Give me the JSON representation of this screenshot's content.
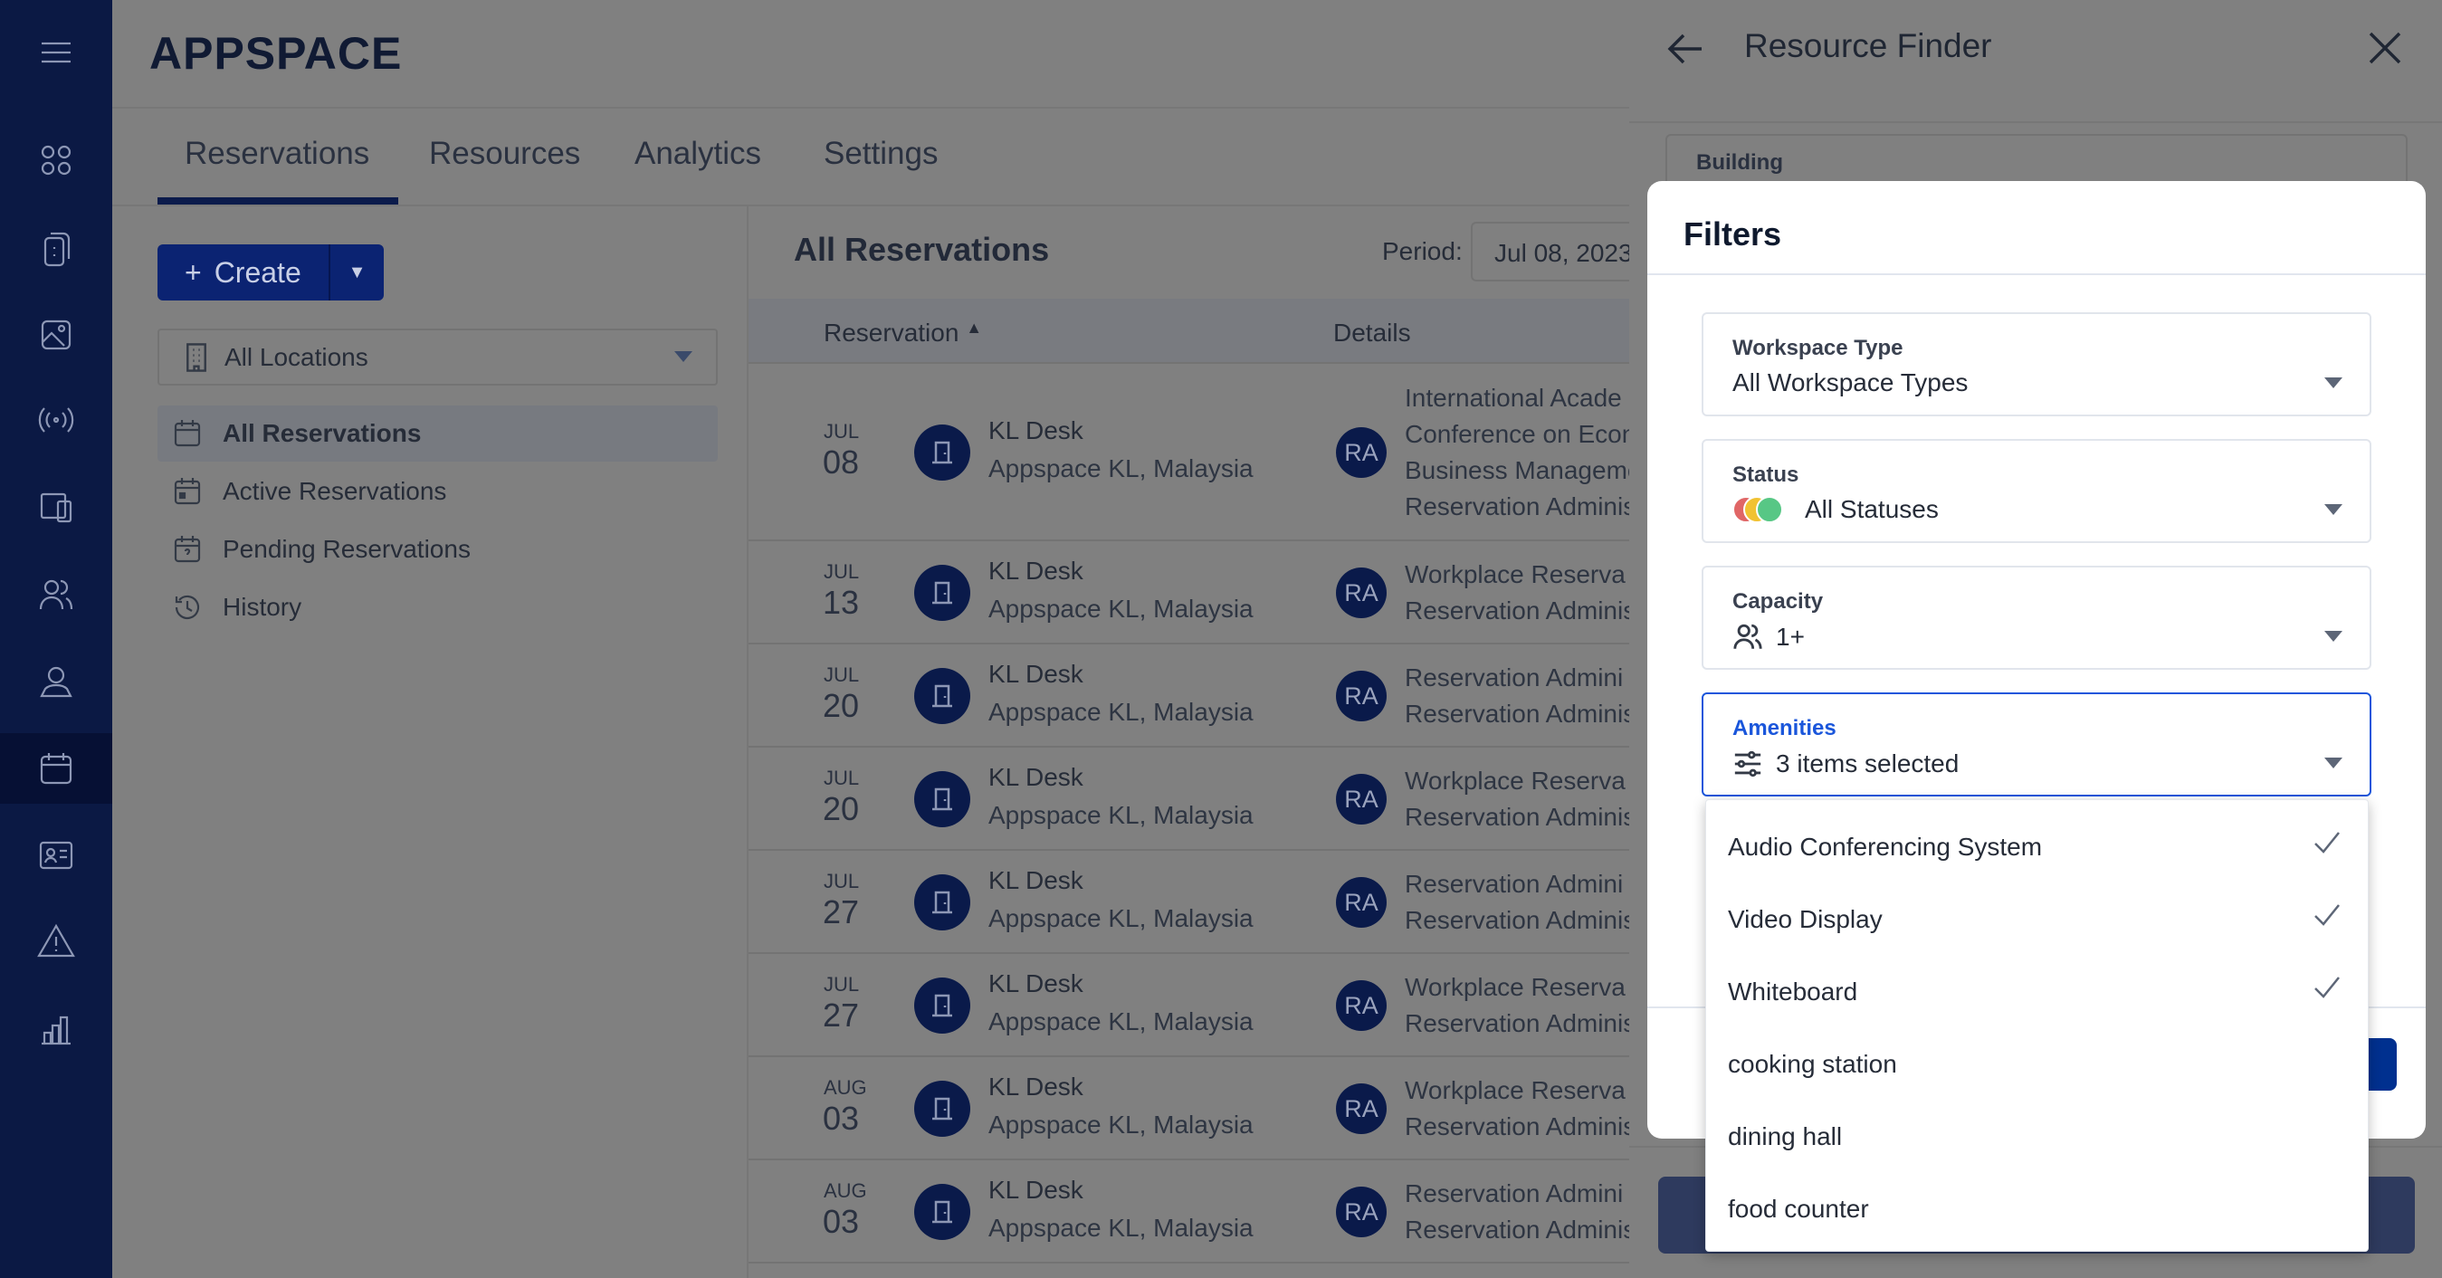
{
  "app": {
    "logo": "APPSPACE"
  },
  "sidebar": {
    "icons": [
      "menu-icon",
      "apps-icon",
      "devices-icon",
      "media-icon",
      "broadcast-icon",
      "screens-icon",
      "users-icon",
      "user-profile-icon",
      "calendar-icon",
      "id-card-icon",
      "alert-icon",
      "chart-icon"
    ],
    "active": "calendar-icon"
  },
  "tabs": [
    {
      "label": "Reservations",
      "active": true
    },
    {
      "label": "Resources"
    },
    {
      "label": "Analytics"
    },
    {
      "label": "Settings"
    }
  ],
  "left": {
    "create_label": "Create",
    "location": "All Locations",
    "nav": [
      {
        "label": "All Reservations",
        "selected": true
      },
      {
        "label": "Active Reservations"
      },
      {
        "label": "Pending Reservations"
      },
      {
        "label": "History"
      }
    ]
  },
  "list": {
    "title": "All Reservations",
    "period_label": "Period:",
    "period_value": "Jul 08, 2023",
    "columns": [
      "Reservation",
      "Details"
    ],
    "rows": [
      {
        "month": "JUL",
        "day": "08",
        "name": "KL Desk",
        "location": "Appspace KL, Malaysia",
        "initials": "RA",
        "details": [
          "International Acade",
          "Conference on Econ",
          "Business Manageme",
          "Reservation Adminis"
        ]
      },
      {
        "month": "JUL",
        "day": "13",
        "name": "KL Desk",
        "location": "Appspace KL, Malaysia",
        "initials": "RA",
        "details": [
          "Workplace Reserva",
          "Reservation Adminis"
        ]
      },
      {
        "month": "JUL",
        "day": "20",
        "name": "KL Desk",
        "location": "Appspace KL, Malaysia",
        "initials": "RA",
        "details": [
          "Reservation Admini",
          "Reservation Adminis"
        ]
      },
      {
        "month": "JUL",
        "day": "20",
        "name": "KL Desk",
        "location": "Appspace KL, Malaysia",
        "initials": "RA",
        "details": [
          "Workplace Reserva",
          "Reservation Adminis"
        ]
      },
      {
        "month": "JUL",
        "day": "27",
        "name": "KL Desk",
        "location": "Appspace KL, Malaysia",
        "initials": "RA",
        "details": [
          "Reservation Admini",
          "Reservation Adminis"
        ]
      },
      {
        "month": "JUL",
        "day": "27",
        "name": "KL Desk",
        "location": "Appspace KL, Malaysia",
        "initials": "RA",
        "details": [
          "Workplace Reserva",
          "Reservation Adminis"
        ]
      },
      {
        "month": "AUG",
        "day": "03",
        "name": "KL Desk",
        "location": "Appspace KL, Malaysia",
        "initials": "RA",
        "details": [
          "Workplace Reserva",
          "Reservation Adminis"
        ]
      },
      {
        "month": "AUG",
        "day": "03",
        "name": "KL Desk",
        "location": "Appspace KL, Malaysia",
        "initials": "RA",
        "details": [
          "Reservation Admini",
          "Reservation Adminis"
        ]
      }
    ]
  },
  "resource_finder": {
    "title": "Resource Finder",
    "building_label": "Building"
  },
  "filters": {
    "title": "Filters",
    "workspace_type": {
      "label": "Workspace Type",
      "value": "All Workspace Types"
    },
    "status": {
      "label": "Status",
      "value": "All Statuses",
      "colors": [
        "#e06666",
        "#f1c232",
        "#57c785"
      ]
    },
    "capacity": {
      "label": "Capacity",
      "value": "1+"
    },
    "amenities": {
      "label": "Amenities",
      "value": "3 items selected",
      "focus_color": "#1a56db",
      "options": [
        {
          "label": "Audio Conferencing System",
          "checked": true
        },
        {
          "label": "Video Display",
          "checked": true
        },
        {
          "label": "Whiteboard",
          "checked": true
        },
        {
          "label": "cooking station",
          "checked": false
        },
        {
          "label": "dining hall",
          "checked": false
        },
        {
          "label": "food counter",
          "checked": false
        }
      ]
    }
  }
}
